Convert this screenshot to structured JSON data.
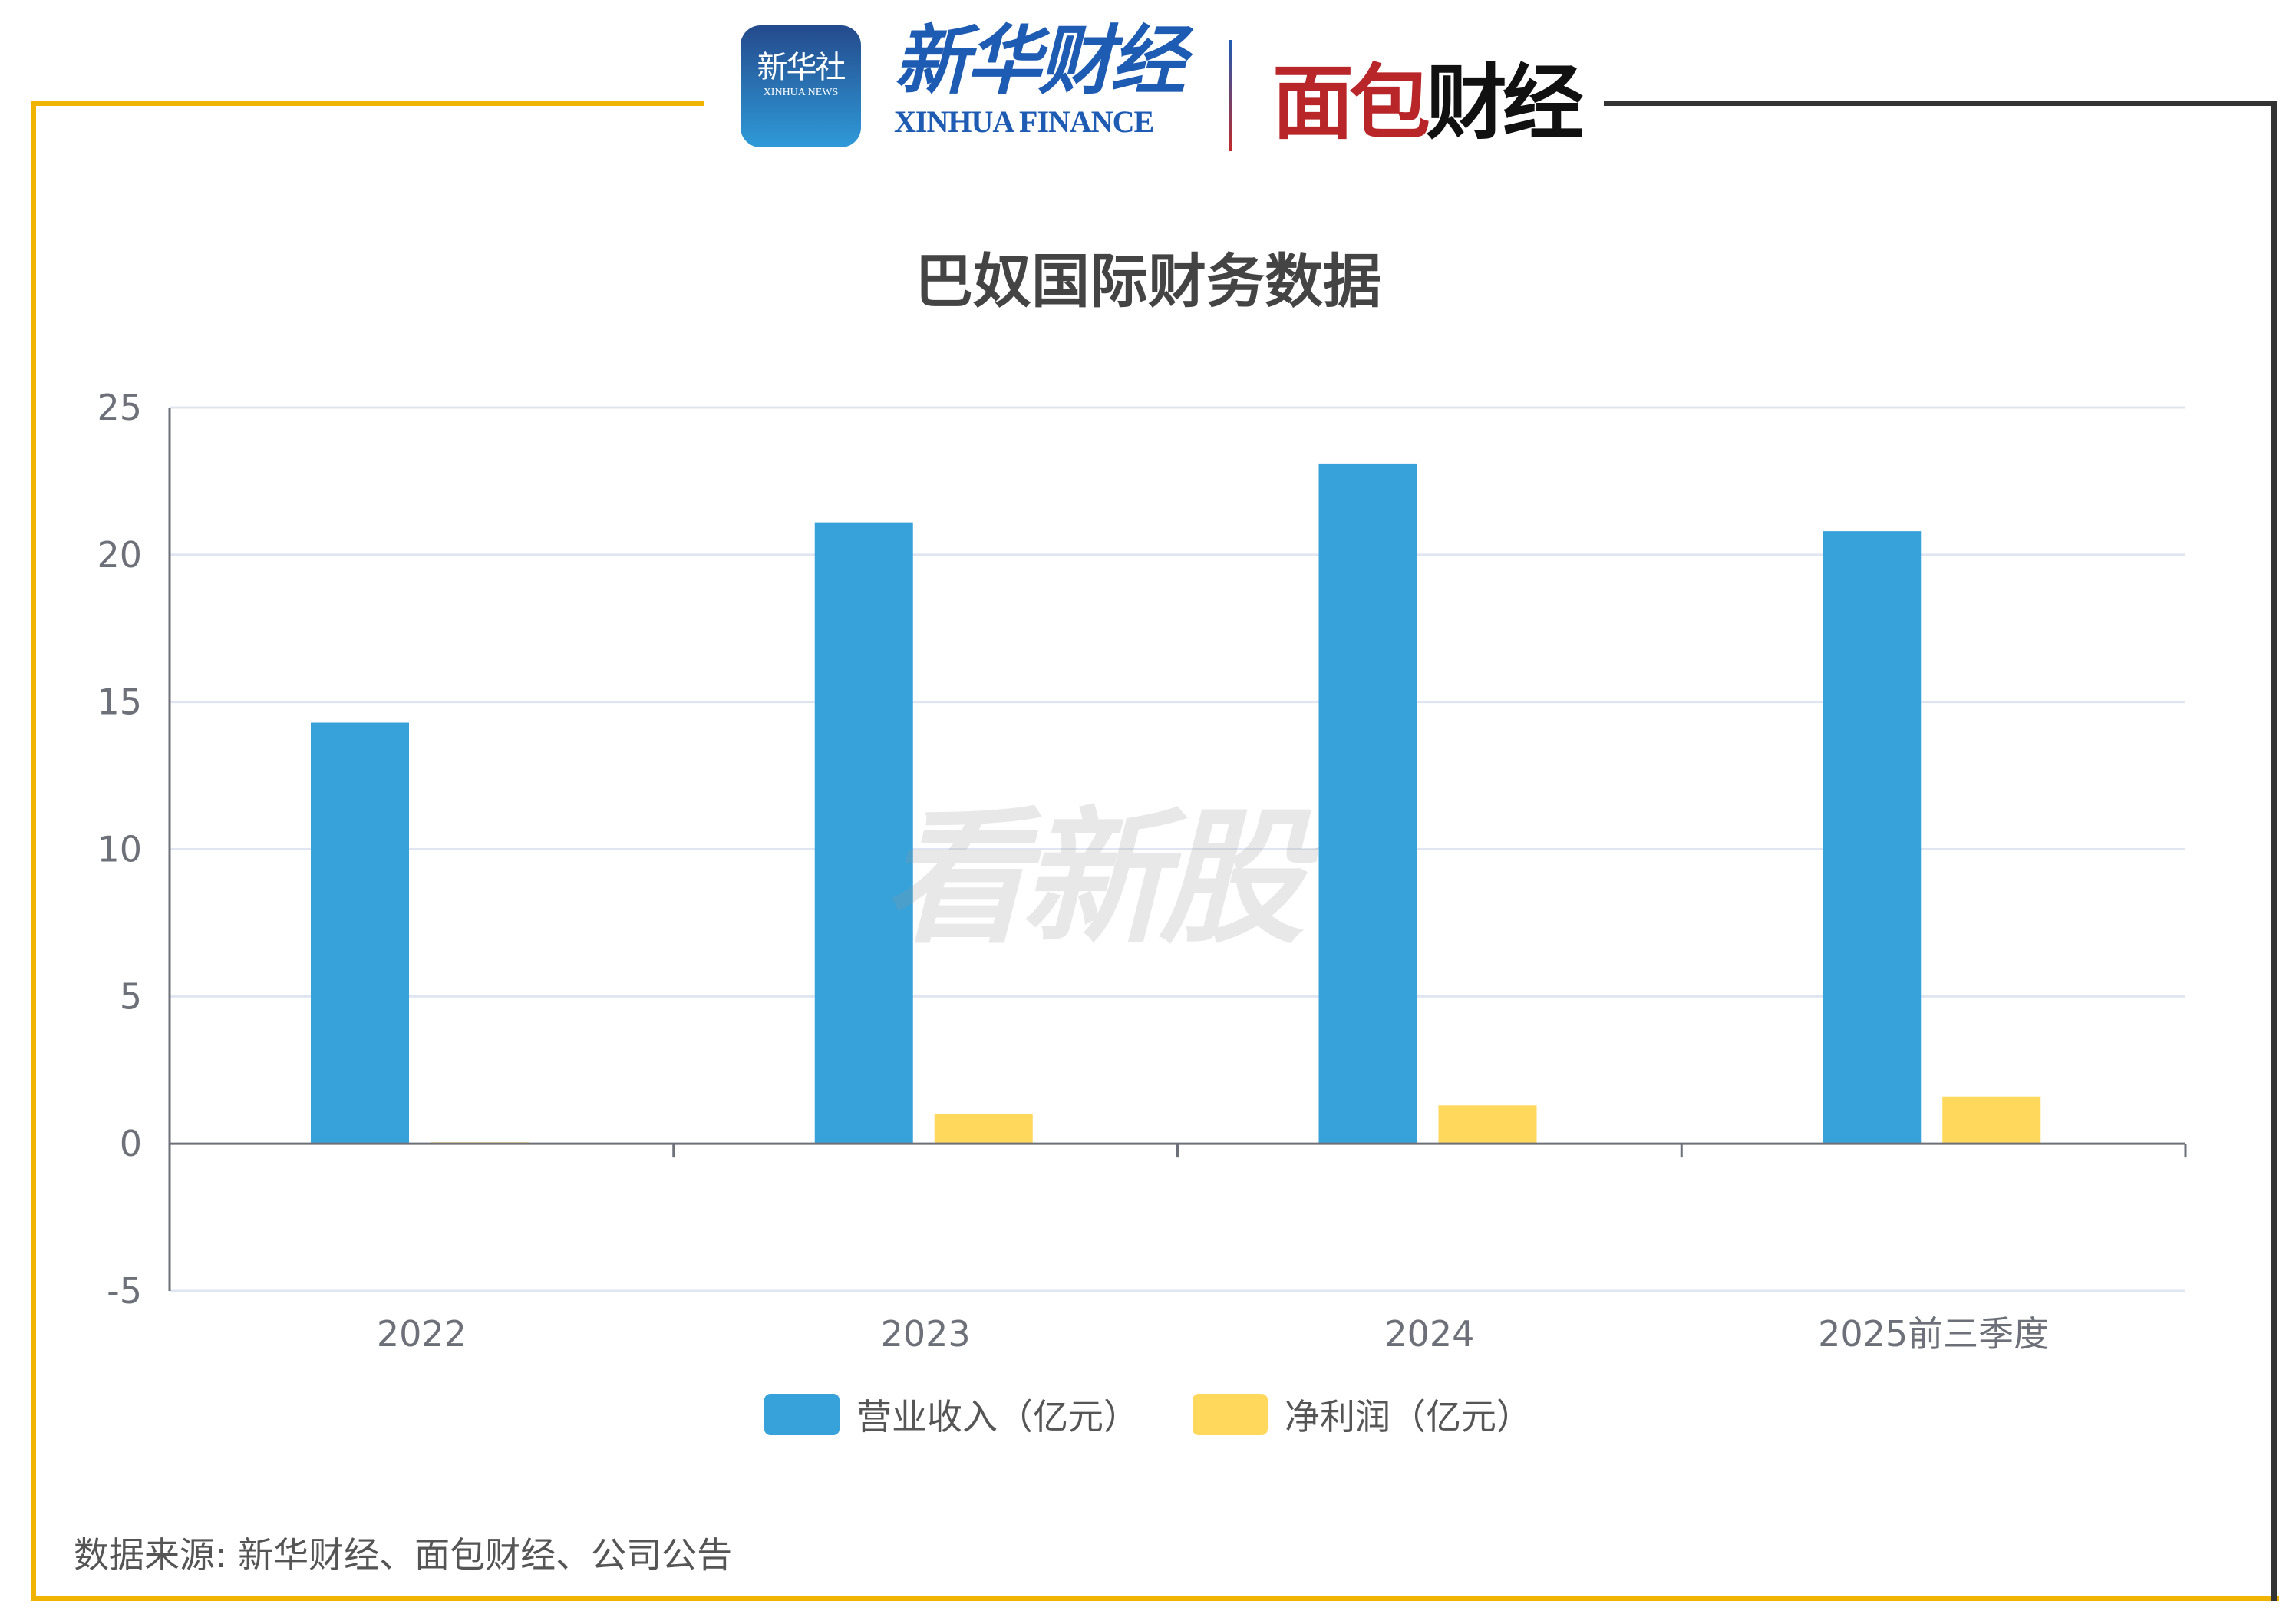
{
  "header": {
    "xinhua_news_logo": "新华社 XINHUA NEWS",
    "xinhua_finance_cn": "新华财经",
    "xinhua_finance_en": "XINHUA FINANCE",
    "mianbao_logo": "面包财经"
  },
  "watermark": "看新股",
  "source": "数据来源: 新华财经、面包财经、公司公告",
  "colors": {
    "revenue": "#37a2da",
    "net_profit": "#ffd85c",
    "frame_accent": "#f0b400",
    "frame_dark": "#333333"
  },
  "chart_data": {
    "type": "bar",
    "title": "巴奴国际财务数据",
    "categories": [
      "2022",
      "2023",
      "2024",
      "2025前三季度"
    ],
    "series": [
      {
        "name": "营业收入（亿元）",
        "values": [
          14.3,
          21.1,
          23.1,
          20.8
        ]
      },
      {
        "name": "净利润（亿元）",
        "values": [
          0.05,
          1.0,
          1.3,
          1.6
        ]
      }
    ],
    "ylim": [
      -5,
      25
    ],
    "yticks": [
      "25",
      "20",
      "15",
      "10",
      "5",
      "0",
      "-5"
    ],
    "grid": true,
    "legend": "bottom"
  }
}
